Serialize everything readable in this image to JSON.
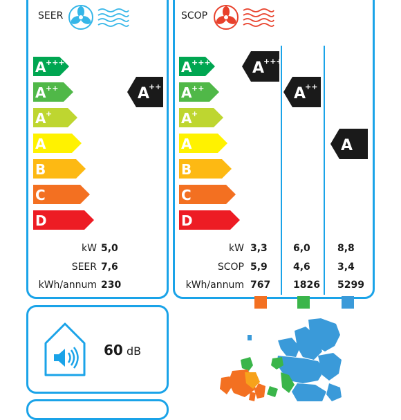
{
  "seer_panel": {
    "title": "SEER",
    "scale": [
      {
        "class": "A",
        "sup": "+++",
        "color": "#00a651"
      },
      {
        "class": "A",
        "sup": "++",
        "color": "#50b848"
      },
      {
        "class": "A",
        "sup": "+",
        "color": "#bed630"
      },
      {
        "class": "A",
        "sup": "",
        "color": "#fff200"
      },
      {
        "class": "B",
        "sup": "",
        "color": "#fdb913"
      },
      {
        "class": "C",
        "sup": "",
        "color": "#f37021"
      },
      {
        "class": "D",
        "sup": "",
        "color": "#ed1c24"
      }
    ],
    "indicator": {
      "class": "A",
      "sup": "++"
    },
    "rows": [
      {
        "label": "kW",
        "value": "5,0"
      },
      {
        "label": "SEER",
        "value": "7,6"
      },
      {
        "label": "kWh/annum",
        "value": "230"
      }
    ]
  },
  "scop_panel": {
    "title": "SCOP",
    "indicators": [
      {
        "class": "A",
        "sup": "+++"
      },
      {
        "class": "A",
        "sup": "++"
      },
      {
        "class": "A",
        "sup": ""
      }
    ],
    "row_labels": [
      "kW",
      "SCOP",
      "kWh/annum"
    ],
    "columns": [
      {
        "kw": "3,3",
        "scop": "5,9",
        "kwh": "767",
        "color": "#f37021"
      },
      {
        "kw": "6,0",
        "scop": "4,6",
        "kwh": "1826",
        "color": "#3ab54a"
      },
      {
        "kw": "8,8",
        "scop": "3,4",
        "kwh": "5299",
        "color": "#3a9ad9"
      }
    ]
  },
  "noise": {
    "value": "60",
    "unit": "dB"
  },
  "colors": {
    "border": "#1aa3e8",
    "indicator": "#1a1a1a"
  }
}
